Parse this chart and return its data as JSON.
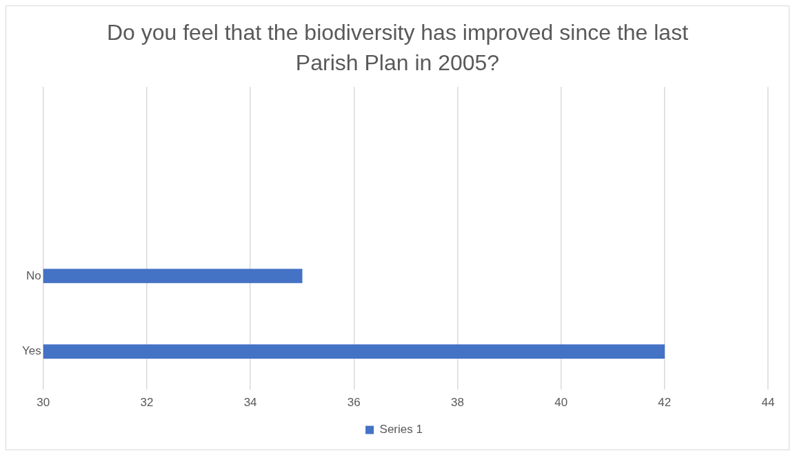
{
  "chart_data": {
    "type": "bar",
    "orientation": "horizontal",
    "title": "Do you feel that the biodiversity has improved since the last Parish Plan in 2005?",
    "categories": [
      null,
      null,
      "No",
      "Yes"
    ],
    "series": [
      {
        "name": "Series 1",
        "color": "#4472c4",
        "values": [
          null,
          null,
          35,
          42
        ]
      }
    ],
    "xlim": [
      30,
      44
    ],
    "xticks": [
      30,
      32,
      34,
      36,
      38,
      40,
      42,
      44
    ],
    "grid": "x",
    "legend": "bottom"
  }
}
